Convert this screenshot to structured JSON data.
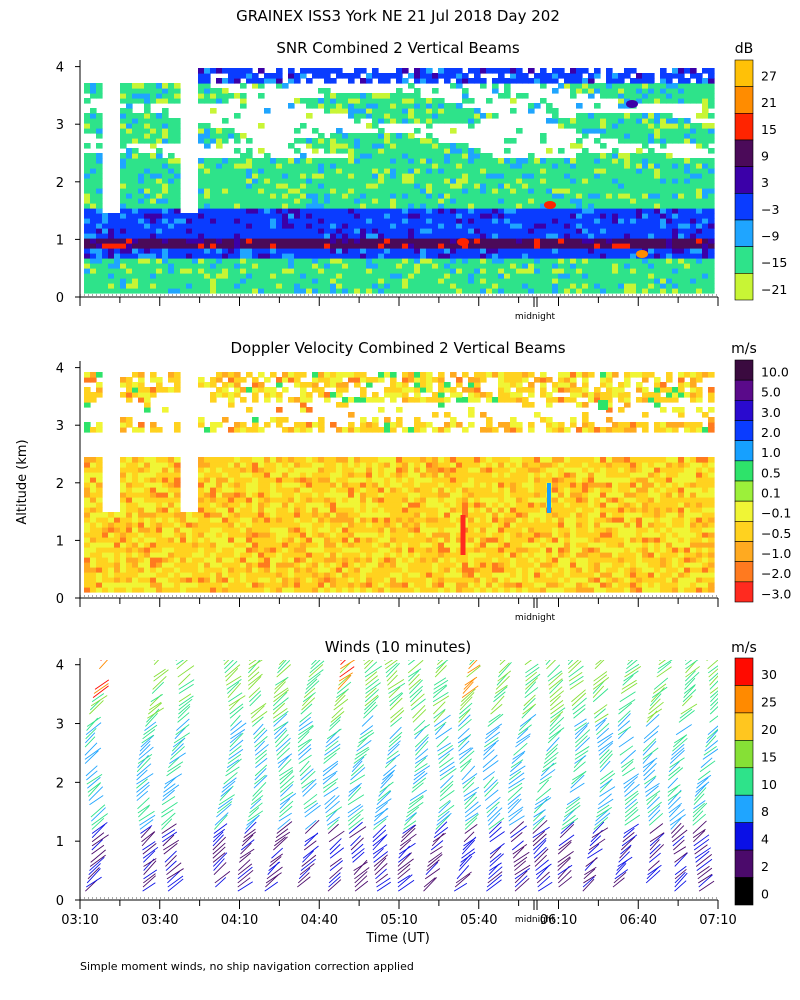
{
  "figure": {
    "title": "GRAINEX ISS3 York NE  21 Jul 2018 Day 202",
    "ylabel": "Altitude (km)",
    "xlabel": "Time (UT)",
    "footnote": "Simple moment winds, no ship navigation correction applied",
    "midnight_label": "midnight"
  },
  "panels": [
    {
      "id": "snr",
      "title": "SNR Combined 2 Vertical Beams",
      "unit": "dB",
      "colorbar_labels": [
        "27",
        "21",
        "15",
        "9",
        "3",
        "−3",
        "−9",
        "−15",
        "−21"
      ],
      "colors": [
        "#FFC107",
        "#FF8C00",
        "#FF2400",
        "#4B0A59",
        "#3B00A8",
        "#0A3CFF",
        "#1FA5FF",
        "#2EE38A",
        "#C8F535"
      ]
    },
    {
      "id": "doppler",
      "title": "Doppler Velocity Combined 2 Vertical Beams",
      "unit": "m/s",
      "colorbar_labels": [
        "10.0",
        "5.0",
        "3.0",
        "2.0",
        "1.0",
        "0.5",
        "0.1",
        "−0.1",
        "−0.5",
        "−1.0",
        "−2.0",
        "−3.0"
      ],
      "colors": [
        "#3A0A3F",
        "#5A0A8A",
        "#2A0ACF",
        "#0A3CFF",
        "#16A0FF",
        "#2EE36A",
        "#9CF03A",
        "#F0F535",
        "#FFD21F",
        "#FFAA20",
        "#FF7A1F",
        "#FF2A1F"
      ]
    },
    {
      "id": "winds",
      "title": "Winds (10 minutes)",
      "unit": "m/s",
      "colorbar_labels": [
        "30",
        "25",
        "20",
        "15",
        "10",
        "8",
        "4",
        "2",
        "0"
      ],
      "colors": [
        "#FF0A00",
        "#FF8A00",
        "#FFC61F",
        "#86E036",
        "#2EE38A",
        "#1FA5FF",
        "#0A10E6",
        "#4B0A6B",
        "#000000"
      ]
    }
  ],
  "chart_data": [
    {
      "type": "heatmap",
      "title": "SNR Combined 2 Vertical Beams",
      "xlabel": "Time (UT)",
      "ylabel": "Altitude (km)",
      "unit": "dB",
      "x_ticks": [
        "03:10",
        "03:40",
        "04:10",
        "04:40",
        "05:10",
        "05:40",
        "06:10",
        "06:40",
        "07:10"
      ],
      "y_ticks": [
        0,
        1,
        2,
        3,
        4
      ],
      "ylim": [
        0,
        4
      ],
      "colorbar_levels": [
        27,
        21,
        15,
        9,
        3,
        -3,
        -9,
        -15,
        -21
      ],
      "layers": [
        {
          "altitude_km": [
            0.0,
            0.6
          ],
          "dominant_snr_db": -15
        },
        {
          "altitude_km": [
            0.6,
            0.8
          ],
          "dominant_snr_db": -3
        },
        {
          "altitude_km": [
            0.8,
            1.0
          ],
          "dominant_snr_db": 9
        },
        {
          "altitude_km": [
            1.0,
            1.5
          ],
          "dominant_snr_db": -3
        },
        {
          "altitude_km": [
            1.5,
            2.4
          ],
          "dominant_snr_db": -15
        },
        {
          "altitude_km": [
            2.4,
            3.7
          ],
          "dominant_snr_db": -21
        },
        {
          "altitude_km": [
            3.7,
            3.9
          ],
          "dominant_snr_db": -3
        }
      ]
    },
    {
      "type": "heatmap",
      "title": "Doppler Velocity Combined 2 Vertical Beams",
      "xlabel": "Time (UT)",
      "ylabel": "Altitude (km)",
      "unit": "m/s",
      "x_ticks": [
        "03:10",
        "03:40",
        "04:10",
        "04:40",
        "05:10",
        "05:40",
        "06:10",
        "06:40",
        "07:10"
      ],
      "y_ticks": [
        0,
        1,
        2,
        3,
        4
      ],
      "ylim": [
        0,
        4
      ],
      "colorbar_levels": [
        10.0,
        5.0,
        3.0,
        2.0,
        1.0,
        0.5,
        0.1,
        -0.1,
        -0.5,
        -1.0,
        -2.0,
        -3.0
      ],
      "layers": [
        {
          "altitude_km": [
            0.1,
            2.4
          ],
          "dominant_velocity_ms": -0.5
        },
        {
          "altitude_km": [
            2.8,
            3.9
          ],
          "dominant_velocity_ms": -0.5
        }
      ]
    },
    {
      "type": "scatter",
      "title": "Winds (10 minutes)",
      "xlabel": "Time (UT)",
      "ylabel": "Altitude (km)",
      "unit": "m/s",
      "x_ticks": [
        "03:10",
        "03:40",
        "04:10",
        "04:40",
        "05:10",
        "05:40",
        "06:10",
        "06:40",
        "07:10"
      ],
      "y_ticks": [
        0,
        1,
        2,
        3,
        4
      ],
      "ylim": [
        0,
        4
      ],
      "colorbar_levels": [
        30,
        25,
        20,
        15,
        10,
        8,
        4,
        2,
        0
      ],
      "profile_times": [
        "03:15",
        "03:35",
        "03:45",
        "04:05",
        "04:15",
        "04:25",
        "04:35",
        "04:45",
        "04:55",
        "05:05",
        "05:15",
        "05:25",
        "05:35",
        "05:45",
        "05:55",
        "06:05",
        "06:15",
        "06:25",
        "06:35",
        "06:45",
        "06:55",
        "07:05"
      ],
      "speed_by_altitude": [
        {
          "altitude_km": [
            0.1,
            1.2
          ],
          "speed_ms": 4
        },
        {
          "altitude_km": [
            1.2,
            3.0
          ],
          "speed_ms": 10
        },
        {
          "altitude_km": [
            3.0,
            4.1
          ],
          "speed_ms": 15
        }
      ]
    }
  ]
}
